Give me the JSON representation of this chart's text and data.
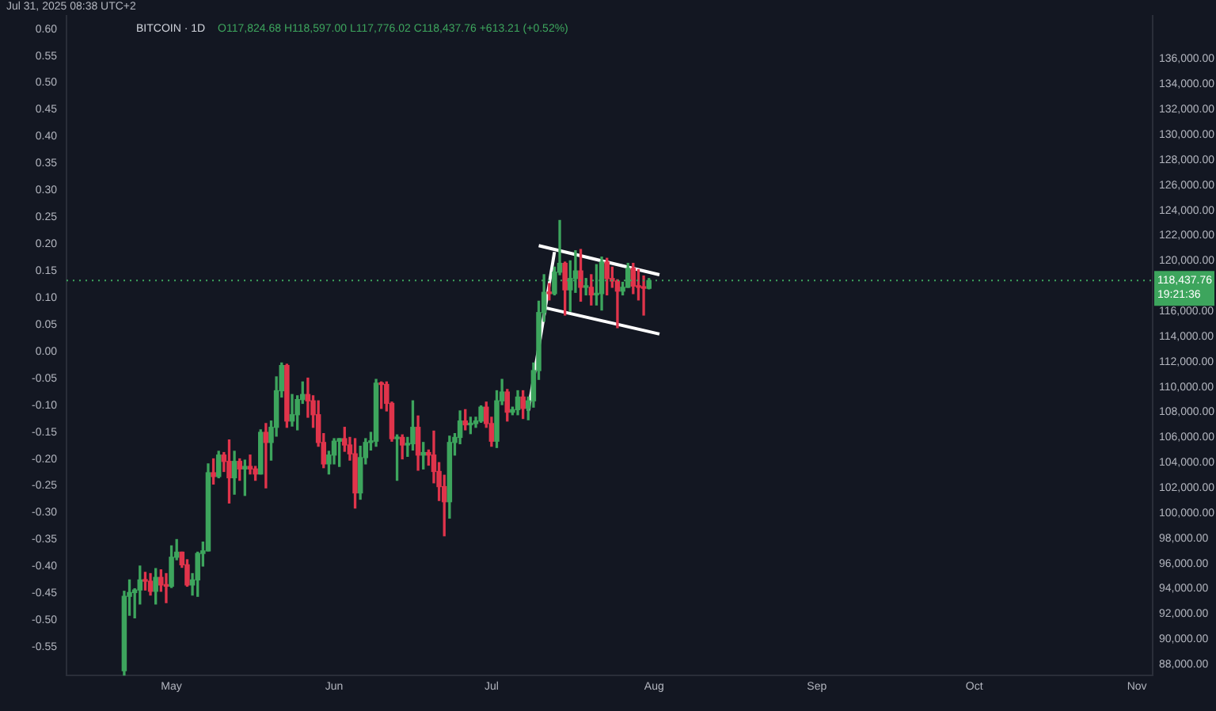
{
  "chart_data": {
    "type": "candlestick",
    "title": "BITCOIN · 1D",
    "subtitle": "Jul 31, 2025 08:38 UTC+2",
    "annotations": [
      "O117,824.68 H118,597.00 L117,776.02 C118,437.76 +613.21 (+0.52%)",
      "19:21:36"
    ],
    "colors": [
      "#3da55d",
      "#3da55d",
      "#3da55d",
      "#3da55d",
      "#e0344b",
      "#e0344b",
      "#3da55d",
      "#e0344b",
      "#e0344b",
      "#3da55d",
      "#3da55d",
      "#e0344b",
      "#e0344b",
      "#3da55d",
      "#3da55d",
      "#3da55d",
      "#3da55d",
      "#e0344b",
      "#3da55d",
      "#e0344b",
      "#e0344b",
      "#3da55d",
      "#e0344b",
      "#3da55d",
      "#e0344b",
      "#e0344b",
      "#3da55d",
      "#e0344b",
      "#3da55d",
      "#3da55d",
      "#3da55d",
      "#e0344b",
      "#3da55d",
      "#3da55d",
      "#3da55d",
      "#e0344b",
      "#e0344b",
      "#e0344b",
      "#e0344b",
      "#3da55d",
      "#3da55d",
      "#3da55d",
      "#e0344b",
      "#e0344b",
      "#e0344b",
      "#3da55d",
      "#3da55d",
      "#3da55d",
      "#3da55d",
      "#e0344b",
      "#e0344b",
      "#e0344b",
      "#3da55d",
      "#e0344b",
      "#3da55d",
      "#3da55d",
      "#e0344b",
      "#3da55d",
      "#e0344b",
      "#e0344b",
      "#e0344b",
      "#e0344b",
      "#3da55d",
      "#3da55d",
      "#3da55d",
      "#e0344b",
      "#3da55d",
      "#3da55d",
      "#3da55d",
      "#e0344b",
      "#e0344b",
      "#3da55d",
      "#3da55d",
      "#e0344b",
      "#3da55d",
      "#3da55d",
      "#e0344b",
      "#3da55d",
      "#3da55d",
      "#3da55d",
      "#3da55d",
      "#e0344b",
      "#3da55d",
      "#3da55d",
      "#e0344b",
      "#3da55d",
      "#3da55d",
      "#e0344b",
      "#3da55d",
      "#e0344b",
      "#3da55d",
      "#3da55d",
      "#e0344b",
      "#e0344b",
      "#e0344b",
      "#3da55d",
      "#3da55d",
      "#e0344b",
      "#e0344b",
      "#e0344b",
      "#3da55d"
    ],
    "x": [
      "2025-04-22",
      "2025-04-23",
      "2025-04-24",
      "2025-04-25",
      "2025-04-26",
      "2025-04-27",
      "2025-04-28",
      "2025-04-29",
      "2025-04-30",
      "2025-05-01",
      "2025-05-02",
      "2025-05-03",
      "2025-05-04",
      "2025-05-05",
      "2025-05-06",
      "2025-05-07",
      "2025-05-08",
      "2025-05-09",
      "2025-05-10",
      "2025-05-11",
      "2025-05-12",
      "2025-05-13",
      "2025-05-14",
      "2025-05-15",
      "2025-05-16",
      "2025-05-17",
      "2025-05-18",
      "2025-05-19",
      "2025-05-20",
      "2025-05-21",
      "2025-05-22",
      "2025-05-23",
      "2025-05-24",
      "2025-05-25",
      "2025-05-26",
      "2025-05-27",
      "2025-05-28",
      "2025-05-29",
      "2025-05-30",
      "2025-05-31",
      "2025-06-01",
      "2025-06-02",
      "2025-06-03",
      "2025-06-04",
      "2025-06-05",
      "2025-06-06",
      "2025-06-07",
      "2025-06-08",
      "2025-06-09",
      "2025-06-10",
      "2025-06-11",
      "2025-06-12",
      "2025-06-13",
      "2025-06-14",
      "2025-06-15",
      "2025-06-16",
      "2025-06-17",
      "2025-06-18",
      "2025-06-19",
      "2025-06-20",
      "2025-06-21",
      "2025-06-22",
      "2025-06-23",
      "2025-06-24",
      "2025-06-25",
      "2025-06-26",
      "2025-06-27",
      "2025-06-28",
      "2025-06-29",
      "2025-06-30",
      "2025-07-01",
      "2025-07-02",
      "2025-07-03",
      "2025-07-04",
      "2025-07-05",
      "2025-07-06",
      "2025-07-07",
      "2025-07-08",
      "2025-07-09",
      "2025-07-10",
      "2025-07-11",
      "2025-07-12",
      "2025-07-13",
      "2025-07-14",
      "2025-07-15",
      "2025-07-16",
      "2025-07-17",
      "2025-07-18",
      "2025-07-19",
      "2025-07-20",
      "2025-07-21",
      "2025-07-22",
      "2025-07-23",
      "2025-07-24",
      "2025-07-25",
      "2025-07-26",
      "2025-07-27",
      "2025-07-28",
      "2025-07-29",
      "2025-07-30",
      "2025-07-31"
    ],
    "ohlc": [
      [
        87500,
        93800,
        87000,
        93400
      ],
      [
        93400,
        94700,
        91900,
        93700
      ],
      [
        93700,
        94000,
        91700,
        93900
      ],
      [
        93900,
        95800,
        92800,
        94700
      ],
      [
        94700,
        95300,
        93900,
        94600
      ],
      [
        94600,
        95200,
        93500,
        93800
      ],
      [
        93800,
        95600,
        92800,
        94900
      ],
      [
        94900,
        95500,
        93800,
        94300
      ],
      [
        94300,
        95200,
        92900,
        94200
      ],
      [
        94200,
        97400,
        94100,
        96500
      ],
      [
        96500,
        97900,
        96300,
        96900
      ],
      [
        96900,
        96900,
        95700,
        95900
      ],
      [
        95900,
        96300,
        94200,
        94300
      ],
      [
        94300,
        95200,
        93500,
        94700
      ],
      [
        94700,
        96900,
        93400,
        96800
      ],
      [
        96800,
        97700,
        95800,
        97000
      ],
      [
        97000,
        103900,
        97000,
        103200
      ],
      [
        103200,
        104300,
        102300,
        102900
      ],
      [
        102900,
        104900,
        102800,
        104600
      ],
      [
        104600,
        104800,
        103300,
        104100
      ],
      [
        104100,
        105800,
        100800,
        102800
      ],
      [
        102800,
        104900,
        101500,
        104100
      ],
      [
        104100,
        104300,
        102600,
        103500
      ],
      [
        103500,
        104200,
        101400,
        103700
      ],
      [
        103700,
        104600,
        103100,
        103500
      ],
      [
        103500,
        103700,
        102600,
        103100
      ],
      [
        103100,
        106600,
        103100,
        106400
      ],
      [
        106400,
        107100,
        102000,
        105600
      ],
      [
        105600,
        107300,
        104200,
        106800
      ],
      [
        106800,
        110800,
        106100,
        109700
      ],
      [
        109700,
        111900,
        109200,
        111700
      ],
      [
        111700,
        111800,
        106800,
        107300
      ],
      [
        107300,
        109400,
        106900,
        107800
      ],
      [
        107800,
        109300,
        106600,
        109000
      ],
      [
        109000,
        110400,
        108700,
        109400
      ],
      [
        109400,
        110700,
        107600,
        108900
      ],
      [
        108900,
        109300,
        106800,
        107800
      ],
      [
        107800,
        108900,
        105300,
        105600
      ],
      [
        105600,
        106300,
        103600,
        103900
      ],
      [
        103900,
        104900,
        103100,
        104600
      ],
      [
        104600,
        105900,
        103900,
        105700
      ],
      [
        105700,
        105900,
        103700,
        105900
      ],
      [
        105900,
        106800,
        104900,
        105400
      ],
      [
        105400,
        106000,
        104200,
        104700
      ],
      [
        104700,
        105900,
        100400,
        101600
      ],
      [
        101600,
        105300,
        101100,
        104400
      ],
      [
        104400,
        105900,
        103900,
        105600
      ],
      [
        105600,
        106400,
        105000,
        105700
      ],
      [
        105700,
        110600,
        105300,
        110300
      ],
      [
        110300,
        110400,
        108300,
        110200
      ],
      [
        110200,
        110400,
        108100,
        108700
      ],
      [
        108700,
        108800,
        105700,
        105900
      ],
      [
        105900,
        106200,
        102600,
        106000
      ],
      [
        106000,
        106200,
        104300,
        105400
      ],
      [
        105400,
        106000,
        104500,
        105500
      ],
      [
        105500,
        108900,
        105000,
        106800
      ],
      [
        106800,
        107700,
        103400,
        104600
      ],
      [
        104600,
        105600,
        103500,
        104800
      ],
      [
        104800,
        105000,
        103800,
        104600
      ],
      [
        104600,
        106500,
        102400,
        103300
      ],
      [
        103300,
        104000,
        101000,
        102100
      ],
      [
        102100,
        103000,
        98200,
        100900
      ],
      [
        100900,
        106100,
        99600,
        105600
      ],
      [
        105600,
        106300,
        104600,
        106000
      ],
      [
        106000,
        108100,
        105500,
        107300
      ],
      [
        107300,
        108200,
        106600,
        107000
      ],
      [
        107000,
        107600,
        106300,
        107100
      ],
      [
        107100,
        107600,
        106800,
        107300
      ],
      [
        107300,
        108500,
        107200,
        108400
      ],
      [
        108400,
        108800,
        106800,
        107100
      ],
      [
        107100,
        107600,
        105300,
        105700
      ],
      [
        105700,
        109700,
        105200,
        108900
      ],
      [
        108900,
        110600,
        108600,
        109600
      ],
      [
        109600,
        109800,
        107300,
        108000
      ],
      [
        108000,
        108400,
        107800,
        108200
      ],
      [
        108200,
        109700,
        107800,
        109200
      ],
      [
        109200,
        109700,
        107500,
        108300
      ],
      [
        108300,
        109200,
        107400,
        108900
      ],
      [
        108900,
        111900,
        108400,
        111300
      ],
      [
        111300,
        116800,
        110600,
        115900
      ],
      [
        115900,
        118900,
        115200,
        117500
      ],
      [
        117500,
        118200,
        116900,
        117400
      ],
      [
        117400,
        119500,
        117300,
        119100
      ],
      [
        119100,
        123200,
        118900,
        119800
      ],
      [
        119800,
        119900,
        115700,
        117700
      ],
      [
        117700,
        120000,
        116000,
        118600
      ],
      [
        118600,
        120800,
        117500,
        119200
      ],
      [
        119200,
        120900,
        116800,
        117900
      ],
      [
        117900,
        118600,
        117300,
        117900
      ],
      [
        117900,
        118900,
        116500,
        117300
      ],
      [
        117300,
        119700,
        116500,
        117400
      ],
      [
        117400,
        120300,
        116100,
        119900
      ],
      [
        119900,
        120200,
        117300,
        118600
      ],
      [
        118600,
        119500,
        117900,
        118400
      ],
      [
        118400,
        118500,
        114700,
        117600
      ],
      [
        117600,
        118300,
        117300,
        117900
      ],
      [
        117900,
        119800,
        117900,
        119400
      ],
      [
        119400,
        119800,
        117400,
        118000
      ],
      [
        118000,
        119300,
        116900,
        117900
      ],
      [
        117900,
        118800,
        115700,
        117824.68
      ],
      [
        117824.68,
        118597,
        117776.02,
        118437.76
      ]
    ],
    "series": [
      {
        "type": "line",
        "x": [
          "2025-07-08",
          "2025-07-13"
        ],
        "values": [
          108100,
          120700
        ],
        "color": "#ffffff"
      },
      {
        "type": "line",
        "x": [
          "2025-07-10",
          "2025-08-02"
        ],
        "values": [
          121200,
          118900
        ],
        "color": "#ffffff"
      },
      {
        "type": "line",
        "x": [
          "2025-07-11",
          "2025-08-02"
        ],
        "values": [
          116300,
          114200
        ],
        "color": "#ffffff"
      }
    ],
    "marker": "none",
    "ref_lines": [
      {
        "axis": "y",
        "value": 118437.76,
        "label": "118,437.76",
        "color": "#3da55d",
        "line_style": "dotted"
      }
    ],
    "xlim": [
      "2025-04-11",
      "2025-11-04"
    ],
    "xticks": [
      {
        "value": "2025-05-01",
        "label": "May"
      },
      {
        "value": "2025-06-01",
        "label": "Jun"
      },
      {
        "value": "2025-07-01",
        "label": "Jul"
      },
      {
        "value": "2025-08-01",
        "label": "Aug"
      },
      {
        "value": "2025-09-01",
        "label": "Sep"
      },
      {
        "value": "2025-10-01",
        "label": "Oct"
      },
      {
        "value": "2025-11-01",
        "label": "Nov"
      }
    ],
    "ylim": [
      87120,
      139400
    ],
    "yticks": [
      {
        "value": 88000,
        "label": "88,000.00"
      },
      {
        "value": 90000,
        "label": "90,000.00"
      },
      {
        "value": 92000,
        "label": "92,000.00"
      },
      {
        "value": 94000,
        "label": "94,000.00"
      },
      {
        "value": 96000,
        "label": "96,000.00"
      },
      {
        "value": 98000,
        "label": "98,000.00"
      },
      {
        "value": 100000,
        "label": "100,000.00"
      },
      {
        "value": 102000,
        "label": "102,000.00"
      },
      {
        "value": 104000,
        "label": "104,000.00"
      },
      {
        "value": 106000,
        "label": "106,000.00"
      },
      {
        "value": 108000,
        "label": "108,000.00"
      },
      {
        "value": 110000,
        "label": "110,000.00"
      },
      {
        "value": 112000,
        "label": "112,000.00"
      },
      {
        "value": 114000,
        "label": "114,000.00"
      },
      {
        "value": 116000,
        "label": "116,000.00"
      },
      {
        "value": 120000,
        "label": "120,000.00"
      },
      {
        "value": 122000,
        "label": "122,000.00"
      },
      {
        "value": 124000,
        "label": "124,000.00"
      },
      {
        "value": 126000,
        "label": "126,000.00"
      },
      {
        "value": 128000,
        "label": "128,000.00"
      },
      {
        "value": 130000,
        "label": "130,000.00"
      },
      {
        "value": 132000,
        "label": "132,000.00"
      },
      {
        "value": 134000,
        "label": "134,000.00"
      },
      {
        "value": 136000,
        "label": "136,000.00"
      }
    ],
    "y2lim": [
      -0.603,
      0.624
    ],
    "y2ticks": [
      {
        "value": 0.6,
        "label": "0.60"
      },
      {
        "value": 0.55,
        "label": "0.55"
      },
      {
        "value": 0.5,
        "label": "0.50"
      },
      {
        "value": 0.45,
        "label": "0.45"
      },
      {
        "value": 0.4,
        "label": "0.40"
      },
      {
        "value": 0.35,
        "label": "0.35"
      },
      {
        "value": 0.3,
        "label": "0.30"
      },
      {
        "value": 0.25,
        "label": "0.25"
      },
      {
        "value": 0.2,
        "label": "0.20"
      },
      {
        "value": 0.15,
        "label": "0.15"
      },
      {
        "value": 0.1,
        "label": "0.10"
      },
      {
        "value": 0.05,
        "label": "0.05"
      },
      {
        "value": 0,
        "label": "0.00"
      },
      {
        "value": -0.05,
        "label": "-0.05"
      },
      {
        "value": -0.1,
        "label": "-0.10"
      },
      {
        "value": -0.15,
        "label": "-0.15"
      },
      {
        "value": -0.2,
        "label": "-0.20"
      },
      {
        "value": -0.25,
        "label": "-0.25"
      },
      {
        "value": -0.3,
        "label": "-0.30"
      },
      {
        "value": -0.35,
        "label": "-0.35"
      },
      {
        "value": -0.4,
        "label": "-0.40"
      },
      {
        "value": -0.45,
        "label": "-0.45"
      },
      {
        "value": -0.5,
        "label": "-0.50"
      },
      {
        "value": -0.55,
        "label": "-0.55"
      }
    ],
    "grid": false,
    "legend": false
  }
}
